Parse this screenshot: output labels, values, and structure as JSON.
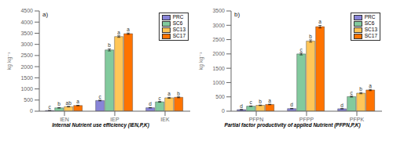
{
  "chart_data": [
    {
      "type": "bar",
      "title": "a)",
      "x_label": "Internal Nutrient use efficiency (IEN,P,K)",
      "y_label": "kg kg⁻¹",
      "categories": [
        "IEN",
        "IEP",
        "IEK"
      ],
      "series": [
        {
          "name": "PRC",
          "values": [
            30,
            480,
            155
          ],
          "errors": [
            4,
            18,
            8
          ],
          "letters": [
            "c",
            "c",
            "d"
          ]
        },
        {
          "name": "SC6",
          "values": [
            150,
            2750,
            420
          ],
          "errors": [
            10,
            45,
            18
          ],
          "letters": [
            "b",
            "b",
            "c"
          ]
        },
        {
          "name": "SC13",
          "values": [
            205,
            3350,
            600
          ],
          "errors": [
            12,
            35,
            22
          ],
          "letters": [
            "ab",
            "a",
            "a"
          ]
        },
        {
          "name": "SC17",
          "values": [
            255,
            3480,
            625
          ],
          "errors": [
            12,
            30,
            22
          ],
          "letters": [
            "a",
            "a",
            "b"
          ]
        }
      ],
      "ylim": [
        0,
        4500
      ],
      "yticks": [
        0,
        500,
        1000,
        1500,
        2000,
        2500,
        3000,
        3500,
        4000,
        4500
      ],
      "legend": "upper right",
      "grid": false
    },
    {
      "type": "bar",
      "title": "b)",
      "x_label": "Partial factor productivity of applied Nutrient (PFPN,P,K)",
      "y_label": "kg kg⁻¹",
      "categories": [
        "PFPN",
        "PFPP",
        "PFPK"
      ],
      "series": [
        {
          "name": "PRC",
          "values": [
            55,
            90,
            85
          ],
          "errors": [
            4,
            8,
            6
          ],
          "letters": [
            "d",
            "d",
            "d"
          ]
        },
        {
          "name": "SC6",
          "values": [
            175,
            2000,
            510
          ],
          "errors": [
            8,
            35,
            18
          ],
          "letters": [
            "c",
            "c",
            "c"
          ]
        },
        {
          "name": "SC13",
          "values": [
            205,
            2450,
            630
          ],
          "errors": [
            10,
            40,
            22
          ],
          "letters": [
            "b",
            "b",
            "b"
          ]
        },
        {
          "name": "SC17",
          "values": [
            235,
            2950,
            740
          ],
          "errors": [
            10,
            45,
            22
          ],
          "letters": [
            "a",
            "a",
            "a"
          ]
        }
      ],
      "ylim": [
        0,
        3500
      ],
      "yticks": [
        0,
        500,
        1000,
        1500,
        2000,
        2500,
        3000,
        3500
      ],
      "legend": "upper right",
      "grid": false
    }
  ]
}
